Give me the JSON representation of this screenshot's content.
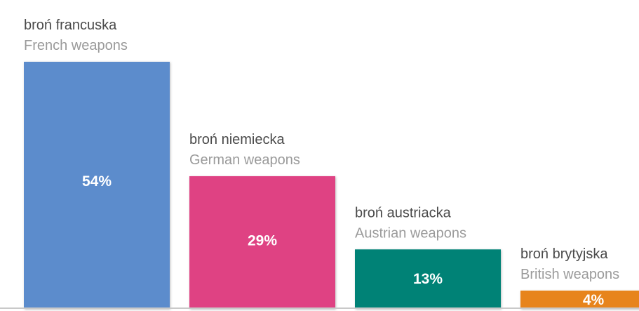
{
  "chart_data": {
    "type": "bar",
    "categories": [
      {
        "label_pl": "broń francuska",
        "label_en": "French weapons"
      },
      {
        "label_pl": "broń niemiecka",
        "label_en": "German weapons"
      },
      {
        "label_pl": "broń austriacka",
        "label_en": "Austrian weapons"
      },
      {
        "label_pl": "broń brytyjska",
        "label_en": "British weapons"
      }
    ],
    "values": [
      54,
      29,
      13,
      4
    ],
    "value_labels": [
      "54%",
      "29%",
      "13%",
      "4%"
    ],
    "colors": [
      "#5b8ccc",
      "#df4283",
      "#008276",
      "#e7841d"
    ],
    "unit": "%",
    "ylim": [
      0,
      54
    ],
    "grid": false,
    "legend": "none"
  }
}
